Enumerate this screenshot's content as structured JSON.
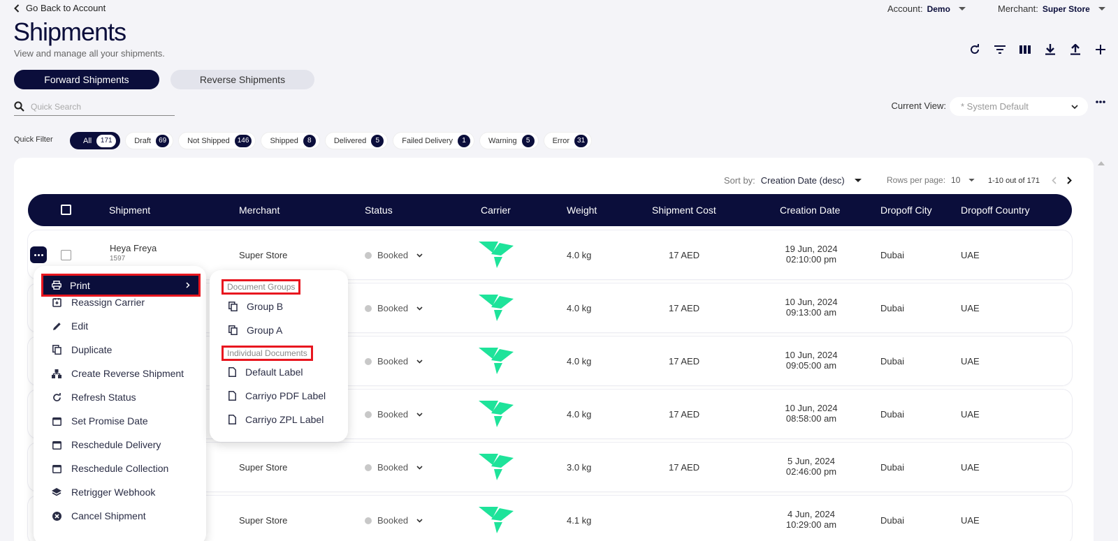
{
  "header": {
    "back_label": "Go Back to Account",
    "account_label": "Account:",
    "account_value": "Demo",
    "merchant_label": "Merchant:",
    "merchant_value": "Super Store",
    "title": "Shipments",
    "subtitle": "View and manage all your shipments."
  },
  "toolbar": {
    "icons": [
      "refresh-icon",
      "filter-icon",
      "columns-icon",
      "download-icon",
      "upload-icon",
      "add-icon"
    ]
  },
  "tabs": {
    "forward": "Forward Shipments",
    "reverse": "Reverse Shipments"
  },
  "search": {
    "placeholder": "Quick Search"
  },
  "current_view": {
    "label": "Current View:",
    "value": "* System Default"
  },
  "quick_filter": {
    "label": "Quick Filter",
    "chips": [
      {
        "label": "All",
        "count": "171"
      },
      {
        "label": "Draft",
        "count": "69"
      },
      {
        "label": "Not Shipped",
        "count": "146"
      },
      {
        "label": "Shipped",
        "count": "8"
      },
      {
        "label": "Delivered",
        "count": "5"
      },
      {
        "label": "Failed Delivery",
        "count": "1"
      },
      {
        "label": "Warning",
        "count": "5"
      },
      {
        "label": "Error",
        "count": "31"
      }
    ]
  },
  "sort": {
    "label": "Sort by:",
    "value": "Creation Date (desc)"
  },
  "pagination": {
    "rows_label": "Rows per page:",
    "rows_value": "10",
    "range": "1-10 out of 171"
  },
  "table": {
    "columns": {
      "shipment": "Shipment",
      "merchant": "Merchant",
      "status": "Status",
      "carrier": "Carrier",
      "weight": "Weight",
      "cost": "Shipment Cost",
      "created": "Creation Date",
      "city": "Dropoff City",
      "country": "Dropoff Country"
    },
    "rows": [
      {
        "name": "Heya Freya",
        "id": "1597",
        "merchant": "Super Store",
        "status": "Booked",
        "weight": "4.0 kg",
        "cost": "17 AED",
        "date": "19 Jun, 2024",
        "time": "02:10:00 pm",
        "city": "Dubai",
        "country": "UAE"
      },
      {
        "status": "Booked",
        "weight": "4.0 kg",
        "cost": "17 AED",
        "date": "10 Jun, 2024",
        "time": "09:13:00 am",
        "city": "Dubai",
        "country": "UAE"
      },
      {
        "status": "Booked",
        "weight": "4.0 kg",
        "cost": "17 AED",
        "date": "10 Jun, 2024",
        "time": "09:05:00 am",
        "city": "Dubai",
        "country": "UAE"
      },
      {
        "status": "Booked",
        "weight": "4.0 kg",
        "cost": "17 AED",
        "date": "10 Jun, 2024",
        "time": "08:58:00 am",
        "city": "Dubai",
        "country": "UAE"
      },
      {
        "merchant": "Super Store",
        "status": "Booked",
        "weight": "3.0 kg",
        "cost": "17 AED",
        "date": "5 Jun, 2024",
        "time": "02:46:00 pm",
        "city": "Dubai",
        "country": "UAE"
      },
      {
        "merchant": "Super Store",
        "status": "Booked",
        "weight": "4.1 kg",
        "cost": "",
        "date": "4 Jun, 2024",
        "time": "10:29:00 am",
        "city": "Dubai",
        "country": "UAE"
      }
    ]
  },
  "row_menu": {
    "items": [
      {
        "label": "Print",
        "icon": "printer-icon"
      },
      {
        "label": "Reassign Carrier",
        "icon": "reassign-icon"
      },
      {
        "label": "Edit",
        "icon": "pencil-icon"
      },
      {
        "label": "Duplicate",
        "icon": "copy-icon"
      },
      {
        "label": "Create Reverse Shipment",
        "icon": "hierarchy-icon"
      },
      {
        "label": "Refresh Status",
        "icon": "refresh-icon"
      },
      {
        "label": "Set Promise Date",
        "icon": "calendar-icon"
      },
      {
        "label": "Reschedule Delivery",
        "icon": "calendar-icon"
      },
      {
        "label": "Reschedule Collection",
        "icon": "calendar-icon"
      },
      {
        "label": "Retrigger Webhook",
        "icon": "layers-icon"
      },
      {
        "label": "Cancel Shipment",
        "icon": "cancel-icon"
      }
    ]
  },
  "print_submenu": {
    "groups_header": "Document Groups",
    "groups": [
      "Group B",
      "Group A"
    ],
    "docs_header": "Individual Documents",
    "docs": [
      "Default Label",
      "Carriyo PDF Label",
      "Carriyo ZPL Label"
    ]
  },
  "colors": {
    "primary": "#0b0e3b",
    "carrier_logo": "#1ee39a",
    "highlight": "#e8161f",
    "background": "#f4f4f8"
  }
}
